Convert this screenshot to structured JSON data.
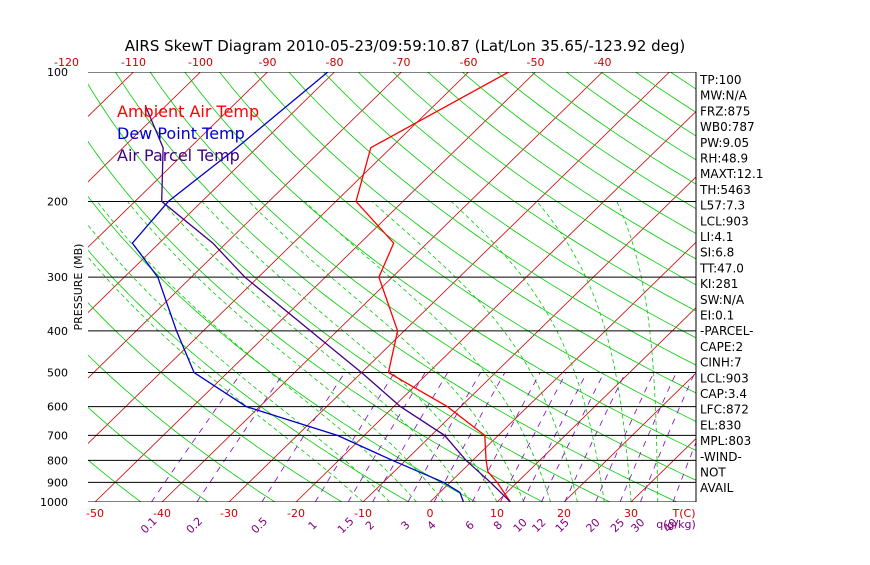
{
  "title": "AIRS SkewT Diagram 2010-05-23/09:59:10.87 (Lat/Lon 35.65/-123.92 deg)",
  "colors": {
    "ambient": "#ff0000",
    "dewpoint": "#0000cc",
    "parcel": "#400080",
    "isotherm": "#cc0000",
    "dry_adiabat": "#00cc00",
    "moist_adiabat": "#00cc00",
    "mixing_ratio": "#8000c0",
    "isobar": "#000000",
    "tick_text": "#cc0000",
    "mixing_text": "#800080"
  },
  "chart_data": {
    "type": "line",
    "title": "AIRS SkewT Diagram 2010-05-23/09:59:10.87 (Lat/Lon 35.65/-123.92 deg)",
    "ylabel": "PRESSURE (MB)",
    "xlabel": "T(C)",
    "y_scale": "log",
    "ylim": [
      1000,
      100
    ],
    "pressure_ticks": [
      100,
      200,
      300,
      400,
      500,
      600,
      700,
      800,
      900,
      1000
    ],
    "bottom_temp_ticks": [
      -50,
      -40,
      -30,
      -20,
      -10,
      0,
      10,
      20,
      30
    ],
    "top_temp_ticks": [
      -120,
      -110,
      -100,
      -90,
      -80,
      -70,
      -60,
      -50,
      -40
    ],
    "bottom_temp_ticks_label": "T(C)",
    "mixing_ratio_labels": [
      "0.1",
      "0.2",
      "0.5",
      "1",
      "1.5",
      "2",
      "3",
      "4",
      "6",
      "8",
      "10",
      "12",
      "15",
      "20",
      "25",
      "30",
      "40"
    ],
    "mixing_ratio_unit": "q(g/kg)",
    "grid": true,
    "legend_position": "top-left",
    "legend": [
      "Ambient Air Temp",
      "Dew Point Temp",
      "Air Parcel Temp"
    ],
    "series": [
      {
        "name": "Ambient Air Temp",
        "points": [
          {
            "p": 100,
            "t": -54
          },
          {
            "p": 150,
            "t": -63
          },
          {
            "p": 200,
            "t": -57
          },
          {
            "p": 250,
            "t": -45
          },
          {
            "p": 300,
            "t": -42
          },
          {
            "p": 400,
            "t": -31
          },
          {
            "p": 500,
            "t": -26
          },
          {
            "p": 600,
            "t": -12
          },
          {
            "p": 700,
            "t": -2
          },
          {
            "p": 800,
            "t": 2
          },
          {
            "p": 850,
            "t": 4
          },
          {
            "p": 900,
            "t": 7
          },
          {
            "p": 1000,
            "t": 12
          }
        ]
      },
      {
        "name": "Dew Point Temp",
        "points": [
          {
            "p": 100,
            "t": -81
          },
          {
            "p": 150,
            "t": -83
          },
          {
            "p": 200,
            "t": -85
          },
          {
            "p": 250,
            "t": -84
          },
          {
            "p": 300,
            "t": -75
          },
          {
            "p": 400,
            "t": -64
          },
          {
            "p": 500,
            "t": -55
          },
          {
            "p": 600,
            "t": -42
          },
          {
            "p": 700,
            "t": -24
          },
          {
            "p": 800,
            "t": -12
          },
          {
            "p": 900,
            "t": -1
          },
          {
            "p": 950,
            "t": 3
          },
          {
            "p": 1000,
            "t": 5
          }
        ]
      },
      {
        "name": "Air Parcel Temp",
        "points": [
          {
            "p": 120,
            "t": -103
          },
          {
            "p": 150,
            "t": -94
          },
          {
            "p": 200,
            "t": -86
          },
          {
            "p": 250,
            "t": -72
          },
          {
            "p": 300,
            "t": -62
          },
          {
            "p": 400,
            "t": -44
          },
          {
            "p": 500,
            "t": -30
          },
          {
            "p": 600,
            "t": -19
          },
          {
            "p": 700,
            "t": -8
          },
          {
            "p": 800,
            "t": -1
          },
          {
            "p": 900,
            "t": 6
          },
          {
            "p": 1000,
            "t": 12
          }
        ]
      }
    ]
  },
  "indices": [
    {
      "label": "TP:100"
    },
    {
      "label": "MW:N/A"
    },
    {
      "label": "FRZ:875"
    },
    {
      "label": "WB0:787"
    },
    {
      "label": "PW:9.05"
    },
    {
      "label": "RH:48.9"
    },
    {
      "label": "MAXT:12.1"
    },
    {
      "label": "TH:5463"
    },
    {
      "label": "L57:7.3"
    },
    {
      "label": "LCL:903"
    },
    {
      "label": "LI:4.1"
    },
    {
      "label": "SI:6.8"
    },
    {
      "label": "TT:47.0"
    },
    {
      "label": "KI:281"
    },
    {
      "label": "SW:N/A"
    },
    {
      "label": "EI:0.1"
    },
    {
      "label": "-PARCEL-"
    },
    {
      "label": "CAPE:2"
    },
    {
      "label": "CINH:7"
    },
    {
      "label": "LCL:903"
    },
    {
      "label": "CAP:3.4"
    },
    {
      "label": "LFC:872"
    },
    {
      "label": "EL:830"
    },
    {
      "label": "MPL:803"
    },
    {
      "label": "-WIND-"
    },
    {
      "label": "NOT"
    },
    {
      "label": "AVAIL"
    }
  ]
}
